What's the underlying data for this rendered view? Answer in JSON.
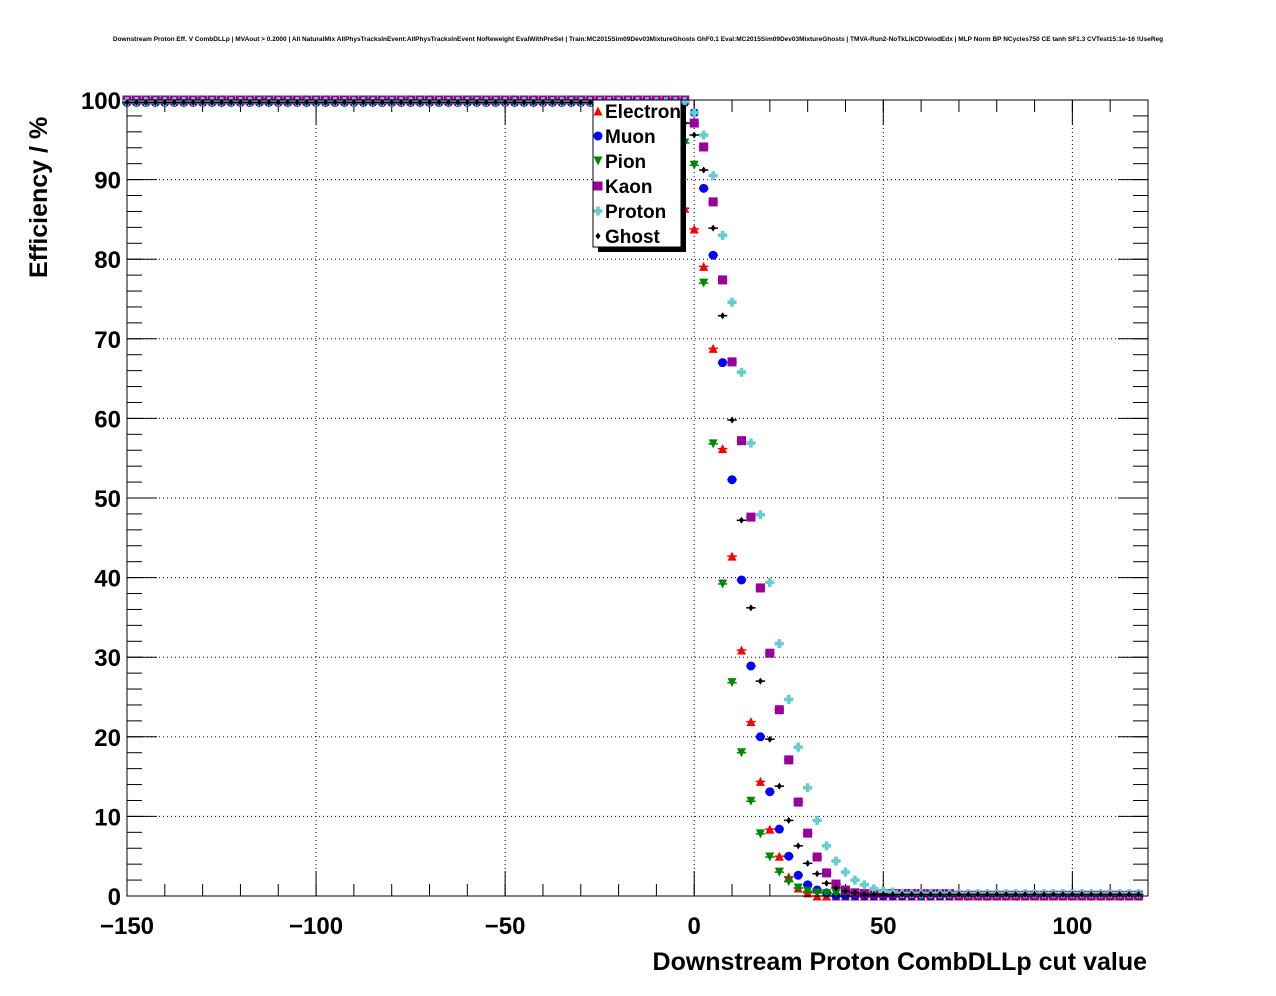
{
  "chart_data": {
    "type": "scatter",
    "title": "Downstream Proton Eff. V CombDLLp | MVAout > 0.2000 | All NaturalMix AllPhysTracksInEvent:AllPhysTracksInEvent NoReweight EvalWithPreSel | Train:MC2015Sim09Dev03MixtureGhosts GhF0.1 Eval:MC2015Sim09Dev03MixtureGhosts | TMVA-Run2-NoTkLikCDVelodEdx | MLP Norm BP NCycles750 CE tanh SF1.3 CVTest15:1e-16 !UseReg",
    "xlabel": "Downstream Proton CombDLLp cut value",
    "ylabel": "Efficiency / %",
    "xlim": [
      -150,
      120
    ],
    "ylim": [
      0,
      100
    ],
    "x_step": 2.5,
    "bin_half_width": 1.25,
    "xticks": [
      -150,
      -100,
      -50,
      0,
      50,
      100
    ],
    "xtick_labels": [
      "−150",
      "−100",
      "−50",
      "0",
      "50",
      "100"
    ],
    "yticks": [
      0,
      10,
      20,
      30,
      40,
      50,
      60,
      70,
      80,
      90,
      100
    ],
    "ytick_labels": [
      "0",
      "10",
      "20",
      "30",
      "40",
      "50",
      "60",
      "70",
      "80",
      "90",
      "100"
    ],
    "grid": true,
    "legend_position": "top-center",
    "series": [
      {
        "name": "Electron",
        "color": "#ff0000",
        "marker": "triangle-up",
        "plateau": 100,
        "start": -2.5,
        "values": [
          86.4,
          83.8,
          79.1,
          68.8,
          56.2,
          42.7,
          30.9,
          21.9,
          14.4,
          8.4,
          5.0,
          2.4,
          1.0,
          0.4
        ],
        "tail": 0.0
      },
      {
        "name": "Muon",
        "color": "#0000ff",
        "marker": "circle",
        "plateau": 99.7,
        "start": 0,
        "values": [
          98.4,
          88.9,
          80.5,
          67.0,
          52.3,
          39.7,
          28.9,
          20.0,
          13.1,
          8.4,
          5.0,
          2.6,
          1.4,
          0.75,
          0.4
        ],
        "tail": 0.0
      },
      {
        "name": "Pion",
        "color": "#008800",
        "marker": "triangle-down",
        "plateau": 99.6,
        "start": -2.5,
        "values": [
          94.6,
          91.8,
          77.0,
          56.8,
          39.2,
          26.8,
          18.0,
          11.9,
          7.8,
          4.9,
          3.0,
          1.8,
          1.0,
          0.6,
          0.4,
          0.3,
          0.3,
          0.3,
          0.3,
          0.3,
          0.3,
          0.3,
          0.3,
          0.3,
          0.3
        ],
        "tail": 0.0
      },
      {
        "name": "Kaon",
        "color": "#990099",
        "marker": "square",
        "plateau": 100,
        "start": 0,
        "values": [
          97.1,
          94.1,
          87.2,
          77.4,
          67.1,
          57.2,
          47.6,
          38.7,
          30.5,
          23.4,
          17.1,
          11.8,
          7.9,
          4.9,
          2.9,
          1.5,
          0.75,
          0.4,
          0.3,
          0.3,
          0.3,
          0.3,
          0.3,
          0.3,
          0.3,
          0.3,
          0.3,
          0.3
        ],
        "tail": 0.1
      },
      {
        "name": "Proton",
        "color": "#66cccc",
        "marker": "cross",
        "plateau": 99.8,
        "start": 0,
        "values": [
          98.4,
          95.6,
          90.5,
          83.0,
          74.6,
          65.8,
          56.9,
          47.9,
          39.4,
          31.7,
          24.7,
          18.7,
          13.6,
          9.5,
          6.3,
          4.4,
          3.0,
          2.0,
          1.4,
          0.9,
          0.6,
          0.5
        ],
        "tail": 0.3
      },
      {
        "name": "Ghost",
        "color": "#000000",
        "marker": "diamond",
        "plateau": 99.7,
        "start": -2.5,
        "values": [
          97.1,
          95.6,
          91.2,
          83.9,
          72.9,
          59.8,
          47.2,
          36.2,
          27.0,
          19.7,
          13.8,
          9.5,
          6.3,
          4.1,
          2.8,
          1.6,
          1.0,
          0.6,
          0.4
        ],
        "tail": 0.2
      }
    ]
  }
}
